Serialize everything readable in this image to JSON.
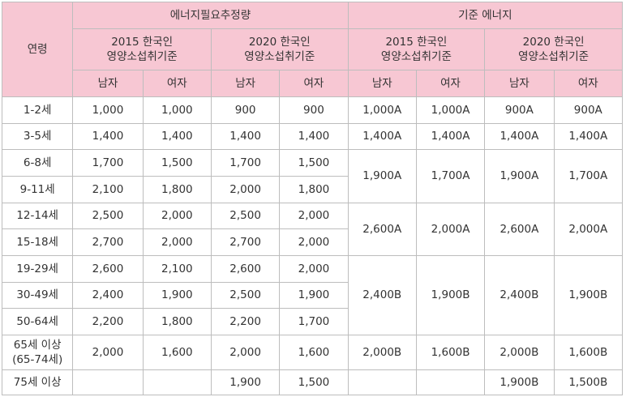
{
  "headers": {
    "age": "연령",
    "eer": "에너지필요추정량",
    "ref": "기준 에너지",
    "std2015_line1": "2015 한국인",
    "std2015_line2": "영양소섭취기준",
    "std2020_line1": "2020 한국인",
    "std2020_line2": "영양소섭취기준",
    "male": "남자",
    "female": "여자"
  },
  "rows": [
    {
      "age": "1-2세",
      "e2015m": "1,000",
      "e2015f": "1,000",
      "e2020m": "900",
      "e2020f": "900",
      "r2015m": "1,000A",
      "r2015f": "1,000A",
      "r2020m": "900A",
      "r2020f": "900A"
    },
    {
      "age": "3-5세",
      "e2015m": "1,400",
      "e2015f": "1,400",
      "e2020m": "1,400",
      "e2020f": "1,400",
      "r2015m": "1,400A",
      "r2015f": "1,400A",
      "r2020m": "1,400A",
      "r2020f": "1,400A"
    },
    {
      "age": "6-8세",
      "e2015m": "1,700",
      "e2015f": "1,500",
      "e2020m": "1,700",
      "e2020f": "1,500"
    },
    {
      "age": "9-11세",
      "e2015m": "2,100",
      "e2015f": "1,800",
      "e2020m": "2,000",
      "e2020f": "1,800"
    },
    {
      "age": "12-14세",
      "e2015m": "2,500",
      "e2015f": "2,000",
      "e2020m": "2,500",
      "e2020f": "2,000"
    },
    {
      "age": "15-18세",
      "e2015m": "2,700",
      "e2015f": "2,000",
      "e2020m": "2,700",
      "e2020f": "2,000"
    },
    {
      "age": "19-29세",
      "e2015m": "2,600",
      "e2015f": "2,100",
      "e2020m": "2,600",
      "e2020f": "2,000"
    },
    {
      "age": "30-49세",
      "e2015m": "2,400",
      "e2015f": "1,900",
      "e2020m": "2,500",
      "e2020f": "1,900"
    },
    {
      "age": "50-64세",
      "e2015m": "2,200",
      "e2015f": "1,800",
      "e2020m": "2,200",
      "e2020f": "1,700"
    },
    {
      "age_line1": "65세 이상",
      "age_line2": "(65-74세)",
      "e2015m": "2,000",
      "e2015f": "1,600",
      "e2020m": "2,000",
      "e2020f": "1,600",
      "r2015m": "2,000B",
      "r2015f": "1,600B",
      "r2020m": "2,000B",
      "r2020f": "1,600B"
    },
    {
      "age": "75세 이상",
      "e2015m": "",
      "e2015f": "",
      "e2020m": "1,900",
      "e2020f": "1,500",
      "r2015m": "",
      "r2015f": "",
      "r2020m": "1,900B",
      "r2020f": "1,500B"
    }
  ],
  "merged": {
    "g6_11": {
      "r2015m": "1,900A",
      "r2015f": "1,700A",
      "r2020m": "1,900A",
      "r2020f": "1,700A"
    },
    "g12_18": {
      "r2015m": "2,600A",
      "r2015f": "2,000A",
      "r2020m": "2,600A",
      "r2020f": "2,000A"
    },
    "g19_64": {
      "r2015m": "2,400B",
      "r2015f": "1,900B",
      "r2020m": "2,400B",
      "r2020f": "1,900B"
    }
  }
}
